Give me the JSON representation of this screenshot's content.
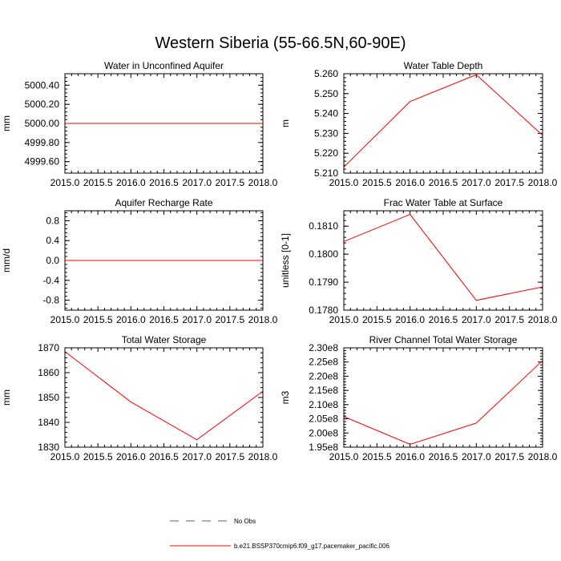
{
  "figure": {
    "title": "Western Siberia (55-66.5N,60-90E)"
  },
  "legend": {
    "entries": [
      {
        "label": "No Obs",
        "style": "dashed",
        "color": "#5a5aa0"
      },
      {
        "label": "b.e21.BSSP370cmip6.f09_g17.pacemaker_pacific.006",
        "style": "solid",
        "color": "#ff0000"
      }
    ]
  },
  "chart_data": [
    {
      "type": "line",
      "title": "Water in Unconfined Aquifer",
      "ylabel": "mm",
      "xlim": [
        2015.0,
        2018.0
      ],
      "ylim": [
        4999.48,
        5000.52
      ],
      "x_ticks": [
        "2015.0",
        "2015.5",
        "2016.0",
        "2016.5",
        "2017.0",
        "2017.5",
        "2018.0"
      ],
      "y_ticks": [
        4999.6,
        4999.8,
        5000.0,
        5000.2,
        5000.4
      ],
      "y_tick_labels": [
        "4999.60",
        "4999.80",
        "5000.00",
        "5000.20",
        "5000.40"
      ],
      "series": [
        {
          "color": "#ff0000",
          "x": [
            2015,
            2016,
            2017,
            2018
          ],
          "y": [
            5000.0,
            5000.0,
            5000.0,
            5000.0
          ]
        }
      ]
    },
    {
      "type": "line",
      "title": "Water Table Depth",
      "ylabel": "m",
      "xlim": [
        2015.0,
        2018.0
      ],
      "ylim": [
        5.21,
        5.26
      ],
      "x_ticks": [
        "2015.0",
        "2015.5",
        "2016.0",
        "2016.5",
        "2017.0",
        "2017.5",
        "2018.0"
      ],
      "y_ticks": [
        5.21,
        5.22,
        5.23,
        5.24,
        5.25,
        5.26
      ],
      "y_tick_labels": [
        "5.210",
        "5.220",
        "5.230",
        "5.240",
        "5.250",
        "5.260"
      ],
      "series": [
        {
          "color": "#ff0000",
          "x": [
            2015,
            2016,
            2017,
            2018
          ],
          "y": [
            5.213,
            5.246,
            5.2595,
            5.229
          ]
        }
      ]
    },
    {
      "type": "line",
      "title": "Aquifer Recharge Rate",
      "ylabel": "mm/d",
      "xlim": [
        2015.0,
        2018.0
      ],
      "ylim": [
        -1.0,
        1.0
      ],
      "x_ticks": [
        "2015.0",
        "2015.5",
        "2016.0",
        "2016.5",
        "2017.0",
        "2017.5",
        "2018.0"
      ],
      "y_ticks": [
        -0.8,
        -0.4,
        0.0,
        0.4,
        0.8
      ],
      "y_tick_labels": [
        "-0.8",
        "-0.4",
        "0.0",
        "0.4",
        "0.8"
      ],
      "series": [
        {
          "color": "#ff0000",
          "x": [
            2015,
            2016,
            2017,
            2018
          ],
          "y": [
            0.0,
            0.0,
            0.0,
            0.0
          ]
        }
      ]
    },
    {
      "type": "line",
      "title": "Frac Water Table at Surface",
      "ylabel": "unitless [0-1]",
      "xlim": [
        2015.0,
        2018.0
      ],
      "ylim": [
        0.178,
        0.18155
      ],
      "x_ticks": [
        "2015.0",
        "2015.5",
        "2016.0",
        "2016.5",
        "2017.0",
        "2017.5",
        "2018.0"
      ],
      "y_ticks": [
        0.178,
        0.179,
        0.18,
        0.181
      ],
      "y_tick_labels": [
        "0.1780",
        "0.1790",
        "0.1800",
        "0.1810"
      ],
      "series": [
        {
          "color": "#ff0000",
          "x": [
            2015,
            2016,
            2017,
            2018
          ],
          "y": [
            0.18045,
            0.18142,
            0.17835,
            0.17883
          ]
        }
      ]
    },
    {
      "type": "line",
      "title": "Total Water Storage",
      "ylabel": "mm",
      "xlim": [
        2015.0,
        2018.0
      ],
      "ylim": [
        1830,
        1870
      ],
      "x_ticks": [
        "2015.0",
        "2015.5",
        "2016.0",
        "2016.5",
        "2017.0",
        "2017.5",
        "2018.0"
      ],
      "y_ticks": [
        1830,
        1840,
        1850,
        1860,
        1870
      ],
      "y_tick_labels": [
        "1830",
        "1840",
        "1850",
        "1860",
        "1870"
      ],
      "series": [
        {
          "color": "#ff0000",
          "x": [
            2015,
            2016,
            2017,
            2018
          ],
          "y": [
            1868.5,
            1848.2,
            1833.0,
            1852.5
          ]
        }
      ]
    },
    {
      "type": "line",
      "title": "River Channel Total Water Storage",
      "ylabel": "m3",
      "xlim": [
        2015.0,
        2018.0
      ],
      "ylim": [
        195000000,
        230000000
      ],
      "x_ticks": [
        "2015.0",
        "2015.5",
        "2016.0",
        "2016.5",
        "2017.0",
        "2017.5",
        "2018.0"
      ],
      "y_ticks": [
        195000000,
        200000000,
        205000000,
        210000000,
        215000000,
        220000000,
        225000000,
        230000000
      ],
      "y_tick_labels": [
        "1.95e8",
        "2.00e8",
        "2.05e8",
        "2.10e8",
        "2.15e8",
        "2.20e8",
        "2.25e8",
        "2.30e8"
      ],
      "series": [
        {
          "color": "#ff0000",
          "x": [
            2015,
            2016,
            2017,
            2018
          ],
          "y": [
            205800000,
            196000000,
            203500000,
            225500000
          ]
        }
      ]
    }
  ]
}
